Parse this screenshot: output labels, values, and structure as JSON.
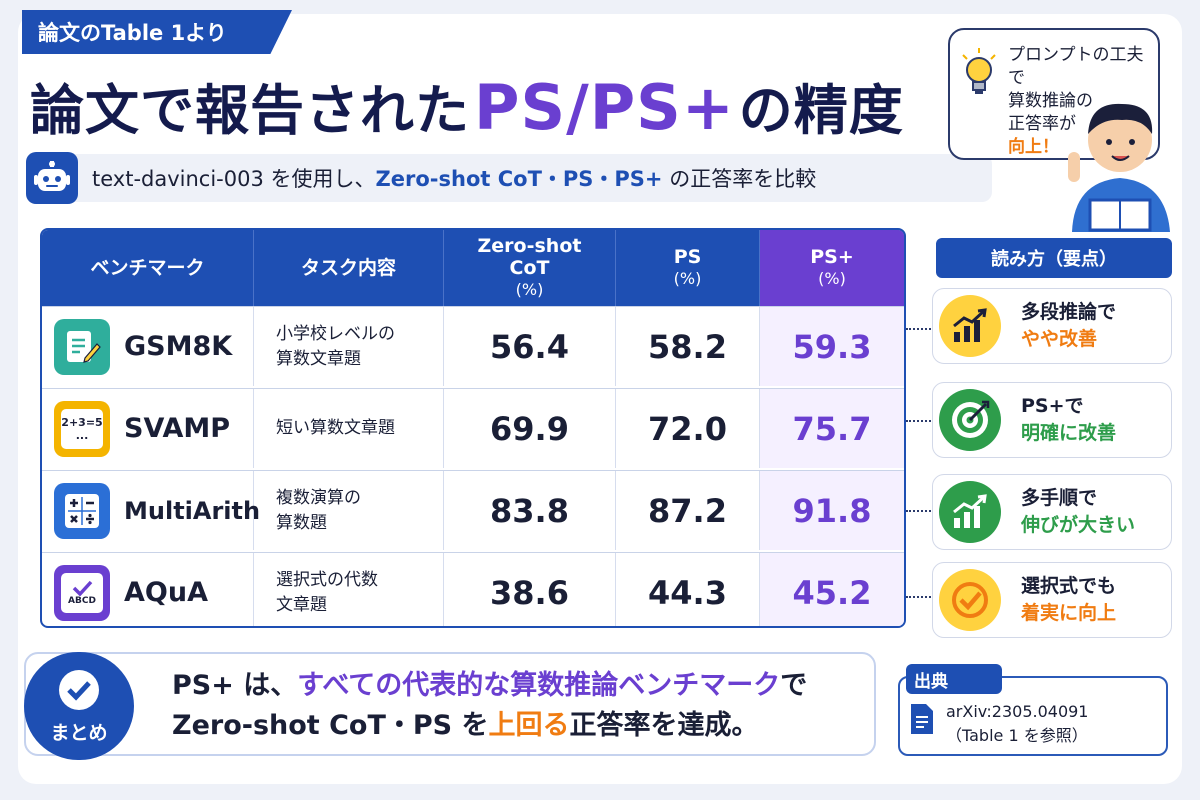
{
  "tag": "論文のTable 1より",
  "title": {
    "pre": "論文で報告された",
    "highlight": "PS/PS+",
    "post": "の精度"
  },
  "subtitle": {
    "model": "text-davinci-003",
    "p1": " を使用し、",
    "methods": "Zero-shot CoT・PS・PS+",
    "p2": " の正答率を比較"
  },
  "bubble": {
    "l1": "プロンプトの工夫で",
    "l2": "算数推論の",
    "l3": "正答率が",
    "l4": "向上！"
  },
  "table": {
    "headers": {
      "benchmark": "ベンチマーク",
      "task": "タスク内容",
      "cot": "Zero-shot",
      "cot2": "CoT",
      "cot_unit": "(%)",
      "ps": "PS",
      "ps_unit": "(%)",
      "psp": "PS+",
      "psp_unit": "(%)"
    },
    "rows": [
      {
        "name": "GSM8K",
        "task": "小学校レベルの\n算数文章題",
        "cot": "56.4",
        "ps": "58.2",
        "psp": "59.3",
        "icon": "document-pencil-icon",
        "color": "#2fae9c"
      },
      {
        "name": "SVAMP",
        "task": "短い算数文章題",
        "cot": "69.9",
        "ps": "72.0",
        "psp": "75.7",
        "icon": "equation-icon",
        "icon_text": "2+3=5",
        "icon_text2": "...",
        "color": "#f4b400"
      },
      {
        "name": "MultiArith",
        "task": "複数演算の\n算数題",
        "cot": "83.8",
        "ps": "87.2",
        "psp": "91.8",
        "icon": "calculator-icon",
        "color": "#2b6fd6"
      },
      {
        "name": "AQuA",
        "task": "選択式の代数\n文章題",
        "cot": "38.6",
        "ps": "44.3",
        "psp": "45.2",
        "icon": "multiple-choice-icon",
        "icon_text": "ABCD",
        "color": "#6a3fd0"
      }
    ]
  },
  "reading": {
    "head": "読み方（要点）",
    "items": [
      {
        "l1": "多段推論で",
        "l2": "やや改善",
        "color": "#f07c12",
        "icon": "bar-chart-up-icon"
      },
      {
        "l1": "PS+で",
        "l2": "明確に改善",
        "color": "#2e9d4b",
        "icon": "target-icon"
      },
      {
        "l1": "多手順で",
        "l2": "伸びが大きい",
        "color": "#2e9d4b",
        "icon": "bar-chart-up-icon"
      },
      {
        "l1": "選択式でも",
        "l2": "着実に向上",
        "color": "#f07c12",
        "icon": "check-circle-icon"
      }
    ]
  },
  "summary": {
    "badge": "まとめ",
    "line1_pre": "PS+ は、",
    "line1_hl": "すべての代表的な算数推論ベンチマーク",
    "line1_post": "で",
    "line2_pre": "Zero-shot CoT・PS を",
    "line2_hl": "上回る",
    "line2_post": "正答率を達成。"
  },
  "source": {
    "head": "出典",
    "l1": "arXiv:2305.04091",
    "l2": "（Table 1 を参照）"
  }
}
